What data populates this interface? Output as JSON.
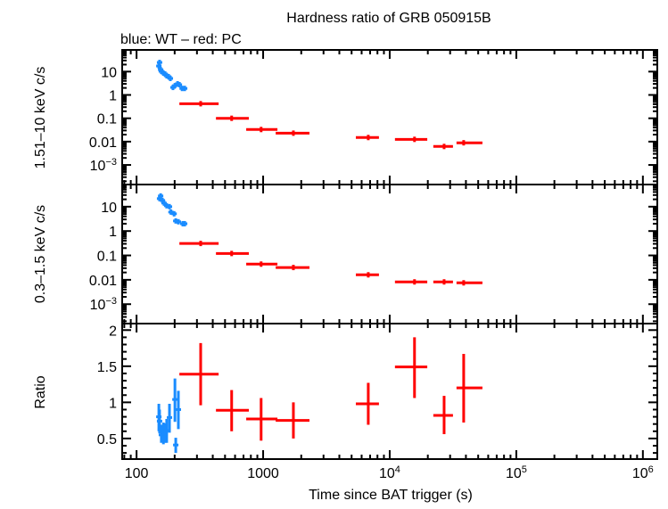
{
  "title": "Hardness ratio of GRB 050915B",
  "subtitle": "blue: WT – red: PC",
  "colors": {
    "wt": "#1a8cff",
    "pc": "#ff0000",
    "axis": "#000000"
  },
  "chart_data": [
    {
      "type": "scatter",
      "panel": "top",
      "ylabel": "1.51–10 keV c/s",
      "yscale": "log",
      "ylim": [
        0.000145,
        85
      ],
      "ytick_labels": [
        "10",
        "1",
        "0.1",
        "0.01",
        "10^−3"
      ],
      "ytick_values": [
        10,
        1,
        0.1,
        0.01,
        0.001
      ],
      "series": [
        {
          "mode": "WT",
          "color": "#1a8cff",
          "x": [
            150,
            152,
            155,
            157,
            163,
            168,
            173,
            179,
            185,
            194,
            201,
            211,
            218,
            229,
            240
          ],
          "y": [
            17.4,
            24.7,
            12.2,
            10.3,
            8.6,
            7.9,
            6.6,
            6.1,
            5.1,
            2.1,
            2.5,
            3.0,
            2.75,
            1.9,
            1.9
          ]
        },
        {
          "mode": "PC",
          "color": "#ff0000",
          "x": [
            321,
            564,
            964,
            1734,
            6770,
            15700,
            26900,
            38400
          ],
          "xlo": [
            218,
            424,
            735,
            1257,
            5400,
            11000,
            22100,
            33700
          ],
          "xhi": [
            445,
            771,
            1297,
            2323,
            8220,
            19800,
            31600,
            54000
          ],
          "y": [
            0.42,
            0.1,
            0.033,
            0.023,
            0.015,
            0.0125,
            0.0062,
            0.0089
          ]
        }
      ]
    },
    {
      "type": "scatter",
      "panel": "middle",
      "ylabel": "0.3–1.5 keV c/s",
      "yscale": "log",
      "ylim": [
        0.00016,
        81
      ],
      "ytick_labels": [
        "10",
        "1",
        "0.1",
        "0.01",
        "10^−3"
      ],
      "ytick_values": [
        10,
        1,
        0.1,
        0.01,
        0.001
      ],
      "series": [
        {
          "mode": "WT",
          "color": "#1a8cff",
          "x": [
            152,
            155,
            160,
            165,
            173,
            182,
            187,
            198,
            204,
            214,
            232,
            240
          ],
          "y": [
            21.4,
            27.5,
            18,
            14,
            10.9,
            10,
            6.0,
            5.1,
            2.6,
            2.4,
            2.0,
            2.0
          ]
        },
        {
          "mode": "PC",
          "color": "#ff0000",
          "x": [
            321,
            564,
            964,
            1734,
            6770,
            15700,
            26900,
            38400
          ],
          "xlo": [
            218,
            424,
            735,
            1257,
            5400,
            11000,
            22100,
            33700
          ],
          "xhi": [
            445,
            771,
            1297,
            2323,
            8220,
            19800,
            31600,
            54000
          ],
          "y": [
            0.31,
            0.12,
            0.044,
            0.032,
            0.016,
            0.0082,
            0.0082,
            0.0075
          ]
        }
      ]
    },
    {
      "type": "scatter",
      "panel": "bottom",
      "ylabel": "Ratio",
      "yscale": "linear",
      "ylim": [
        0.215,
        2.09
      ],
      "ytick_labels": [
        "0.5",
        "1",
        "1.5",
        "2"
      ],
      "ytick_values": [
        0.5,
        1,
        1.5,
        2
      ],
      "xlabel": "Time since BAT trigger (s)",
      "xscale": "log",
      "xlim": [
        77,
        1300000
      ],
      "xtick_labels": [
        "100",
        "1000",
        "10^4",
        "10^5",
        "10^6"
      ],
      "xtick_values": [
        100,
        1000,
        10000,
        100000,
        1000000
      ],
      "series": [
        {
          "mode": "WT",
          "color": "#1a8cff",
          "x": [
            150,
            152,
            157,
            163,
            168,
            173,
            182,
            201,
            204,
            214
          ],
          "y": [
            0.8,
            0.74,
            0.55,
            0.58,
            0.56,
            0.61,
            0.79,
            1.04,
            0.41,
            0.9
          ],
          "ylo": [
            0.6,
            0.57,
            0.44,
            0.42,
            0.44,
            0.44,
            0.58,
            0.73,
            0.3,
            0.63
          ],
          "yhi": [
            0.98,
            0.9,
            0.69,
            0.72,
            0.71,
            0.77,
            0.98,
            1.33,
            0.51,
            1.16
          ]
        },
        {
          "mode": "PC",
          "color": "#ff0000",
          "x": [
            321,
            564,
            964,
            1734,
            6770,
            15700,
            26900,
            38400
          ],
          "xlo": [
            218,
            424,
            735,
            1257,
            5400,
            11000,
            22100,
            33700
          ],
          "xhi": [
            445,
            771,
            1297,
            2323,
            8220,
            19800,
            31600,
            54000
          ],
          "y": [
            1.39,
            0.89,
            0.77,
            0.75,
            0.98,
            1.49,
            0.82,
            1.2
          ],
          "ylo": [
            0.96,
            0.6,
            0.47,
            0.5,
            0.69,
            1.06,
            0.56,
            0.72
          ],
          "yhi": [
            1.82,
            1.17,
            1.06,
            1.0,
            1.27,
            1.9,
            1.09,
            1.67
          ]
        }
      ]
    }
  ]
}
